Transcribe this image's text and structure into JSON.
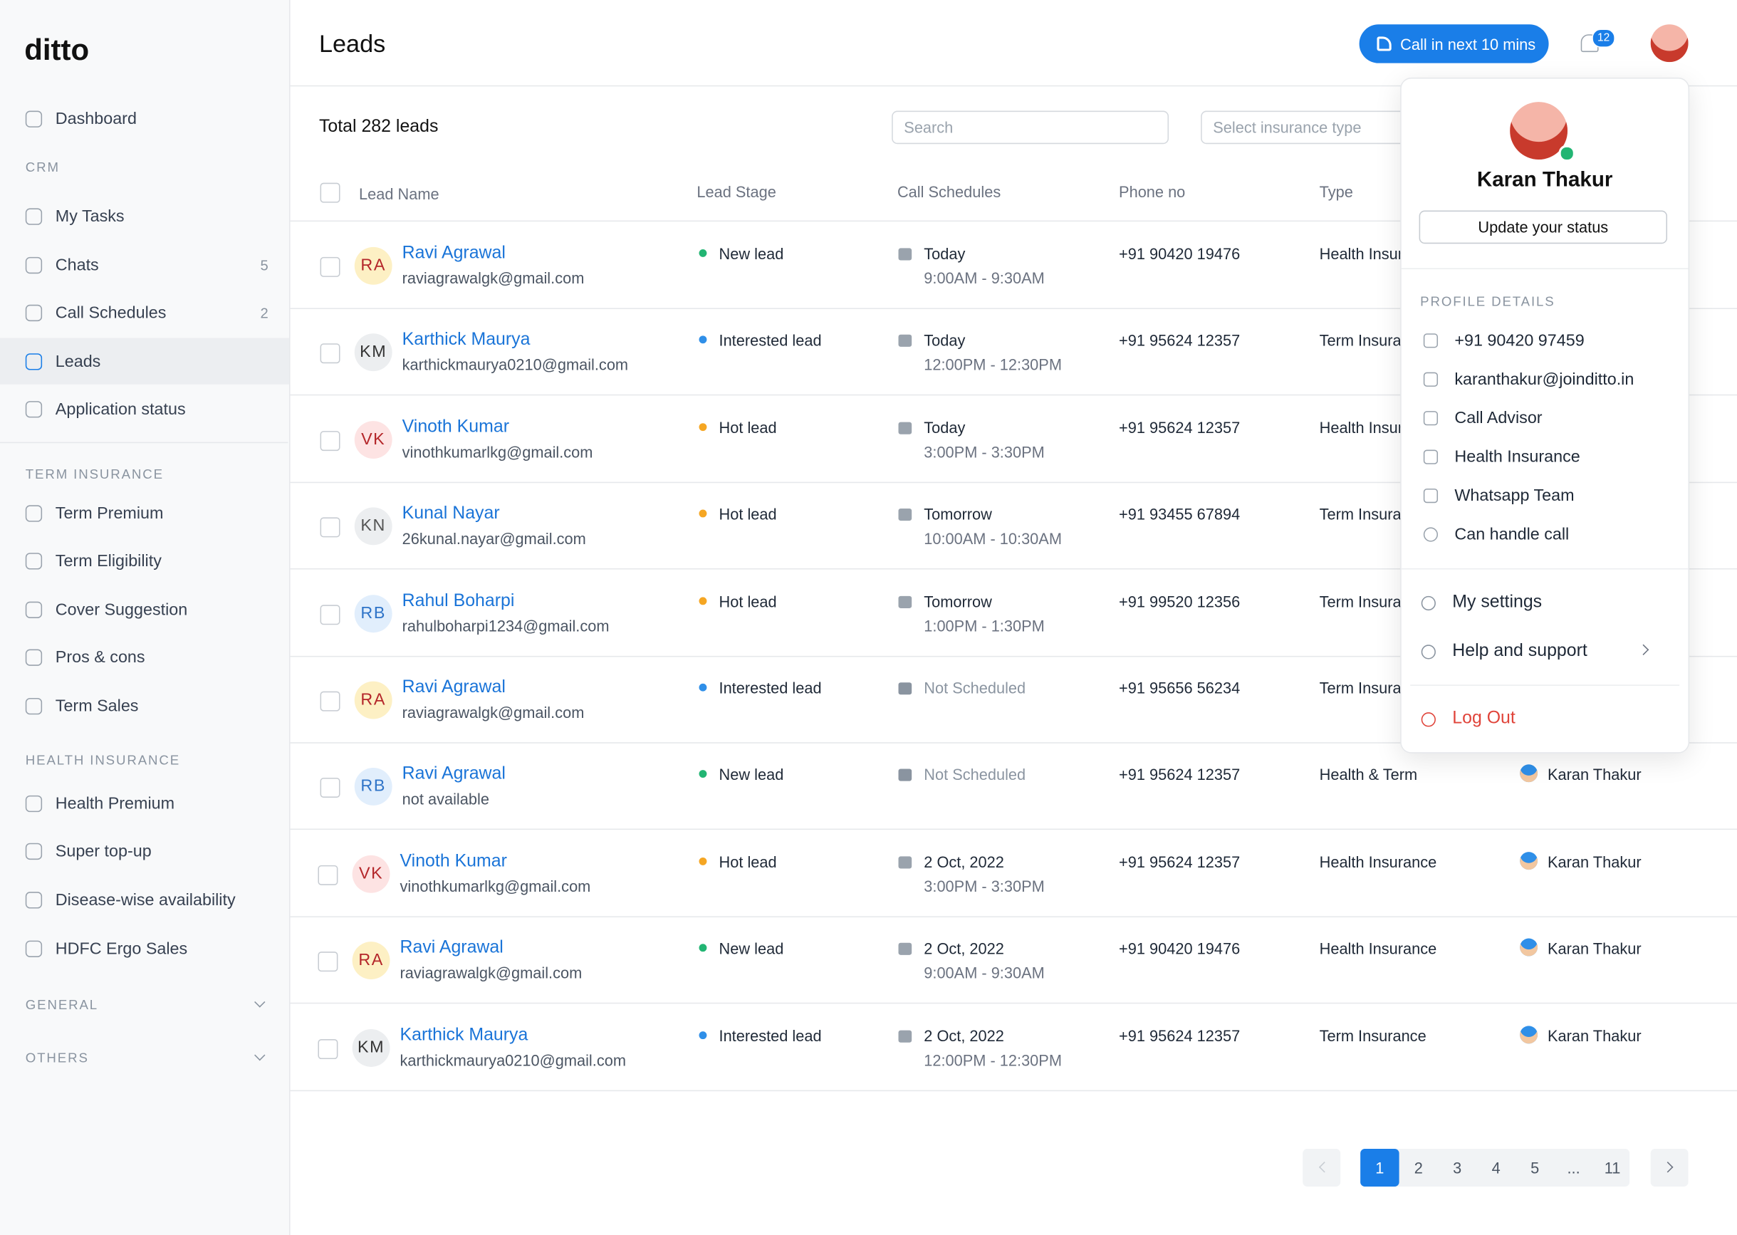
{
  "brand": "ditto",
  "sidebar": [
    {
      "label": "Dashboard"
    },
    {
      "heading": "CRM"
    },
    {
      "label": "My Tasks"
    },
    {
      "label": "Chats",
      "count": 5
    },
    {
      "label": "Call Schedules",
      "count": 2
    },
    {
      "label": "Leads",
      "active": true
    },
    {
      "label": "Application status"
    },
    {
      "heading": "TERM INSURANCE"
    },
    {
      "label": "Term Premium"
    },
    {
      "label": "Term Eligibility"
    },
    {
      "label": "Cover Suggestion"
    },
    {
      "label": "Pros & cons"
    },
    {
      "label": "Term Sales"
    },
    {
      "heading": "HEALTH INSURANCE"
    },
    {
      "label": "Health Premium"
    },
    {
      "label": "Super top-up"
    },
    {
      "label": "Disease-wise availability"
    },
    {
      "label": "HDFC Ergo Sales"
    },
    {
      "heading": "GENERAL",
      "collapsible": true
    },
    {
      "heading": "OTHERS",
      "collapsible": true
    }
  ],
  "header": {
    "title": "Leads",
    "call_button": "Call in next 10 mins",
    "notifications": 12
  },
  "toolbar": {
    "total": "Total 282 leads",
    "search": "Search",
    "filter": "Select insurance type"
  },
  "table": {
    "columns": [
      "Lead Name",
      "Lead Stage",
      "Call Schedules",
      "Phone no",
      "Type"
    ],
    "rows": [
      {
        "initials": "RA",
        "avatar_color": "#fdf0c4",
        "initials_color": "#b4262a",
        "name": "Ravi Agrawal",
        "email": "raviagrawalgk@gmail.com",
        "stage": "New lead",
        "stage_color": "#22b573",
        "day": "Today",
        "time": "9:00AM - 9:30AM",
        "phone": "+91 90420 19476",
        "type": "Health Insurance"
      },
      {
        "initials": "KM",
        "avatar_color": "#eceef0",
        "initials_color": "#333",
        "name": "Karthick Maurya",
        "email": "karthickmaurya0210@gmail.com",
        "stage": "Interested lead",
        "stage_color": "#2f8fe8",
        "day": "Today",
        "time": "12:00PM - 12:30PM",
        "phone": "+91 95624 12357",
        "type": "Term Insurance"
      },
      {
        "initials": "VK",
        "avatar_color": "#fde3e3",
        "initials_color": "#b4262a",
        "name": "Vinoth Kumar",
        "email": "vinothkumarlkg@gmail.com",
        "stage": "Hot lead",
        "stage_color": "#f5a623",
        "day": "Today",
        "time": "3:00PM - 3:30PM",
        "phone": "+91 95624 12357",
        "type": "Health Insurance"
      },
      {
        "initials": "KN",
        "avatar_color": "#eceef0",
        "initials_color": "#555",
        "name": "Kunal Nayar",
        "email": "26kunal.nayar@gmail.com",
        "stage": "Hot lead",
        "stage_color": "#f5a623",
        "day": "Tomorrow",
        "time": "10:00AM - 10:30AM",
        "phone": "+91 93455 67894",
        "type": "Term Insurance"
      },
      {
        "initials": "RB",
        "avatar_color": "#e1eefc",
        "initials_color": "#2f74c8",
        "name": "Rahul Boharpi",
        "email": "rahulboharpi1234@gmail.com",
        "stage": "Hot lead",
        "stage_color": "#f5a623",
        "day": "Tomorrow",
        "time": "1:00PM - 1:30PM",
        "phone": "+91 99520 12356",
        "type": "Term Insurance"
      },
      {
        "initials": "RA",
        "avatar_color": "#fdf0c4",
        "initials_color": "#b4262a",
        "name": "Ravi Agrawal",
        "email": "raviagrawalgk@gmail.com",
        "stage": "Interested lead",
        "stage_color": "#2f8fe8",
        "day": "Not Scheduled",
        "phone": "+91 95656 56234",
        "type": "Term Insurance"
      },
      {
        "initials": "RB",
        "avatar_color": "#e1eefc",
        "initials_color": "#2f74c8",
        "name": "Ravi Agrawal",
        "email": "not available",
        "stage": "New lead",
        "stage_color": "#22b573",
        "day": "Not Scheduled",
        "phone": "+91 95624 12357",
        "type": "Health & Term",
        "assigned": "Karan Thakur"
      },
      {
        "initials": "VK",
        "avatar_color": "#fde3e3",
        "initials_color": "#b4262a",
        "name": "Vinoth Kumar",
        "email": "vinothkumarlkg@gmail.com",
        "stage": "Hot lead",
        "stage_color": "#f5a623",
        "day": "2 Oct, 2022",
        "time": "3:00PM - 3:30PM",
        "phone": "+91 95624 12357",
        "type": "Health Insurance",
        "assigned": "Karan Thakur"
      },
      {
        "initials": "RA",
        "avatar_color": "#fdf0c4",
        "initials_color": "#b4262a",
        "name": "Ravi Agrawal",
        "email": "raviagrawalgk@gmail.com",
        "stage": "New lead",
        "stage_color": "#22b573",
        "day": "2 Oct, 2022",
        "time": "9:00AM - 9:30AM",
        "phone": "+91 90420 19476",
        "type": "Health Insurance",
        "assigned": "Karan Thakur"
      },
      {
        "initials": "KM",
        "avatar_color": "#eceef0",
        "initials_color": "#333",
        "name": "Karthick Maurya",
        "email": "karthickmaurya0210@gmail.com",
        "stage": "Interested lead",
        "stage_color": "#2f8fe8",
        "day": "2 Oct, 2022",
        "time": "12:00PM - 12:30PM",
        "phone": "+91 95624 12357",
        "type": "Term Insurance",
        "assigned": "Karan Thakur"
      }
    ]
  },
  "profile": {
    "name": "Karan Thakur",
    "status_button": "Update your status",
    "details_heading": "PROFILE DETAILS",
    "details": [
      "+91 90420 97459",
      "karanthakur@joinditto.in",
      "Call Advisor",
      "Health Insurance",
      "Whatsapp Team",
      "Can handle call"
    ],
    "menu": [
      "My settings",
      "Help and support"
    ],
    "logout": "Log Out"
  },
  "pagination": {
    "pages": [
      1,
      2,
      3,
      4,
      5,
      "...",
      11
    ],
    "current": 1
  }
}
